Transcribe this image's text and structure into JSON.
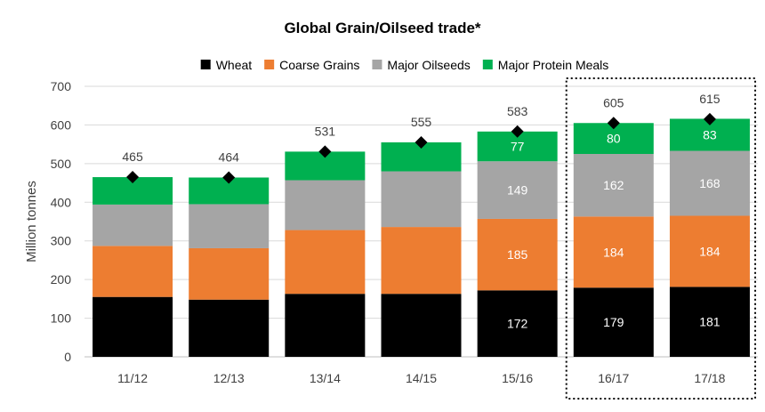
{
  "chart_data": {
    "type": "bar",
    "stacked": true,
    "title": "Global Grain/Oilseed trade*",
    "ylabel": "Million tonnes",
    "xlabel": "",
    "ylim": [
      0,
      700
    ],
    "yticks": [
      0,
      100,
      200,
      300,
      400,
      500,
      600,
      700
    ],
    "grid": true,
    "legend_position": "top",
    "categories": [
      "11/12",
      "12/13",
      "13/14",
      "14/15",
      "15/16",
      "16/17",
      "17/18"
    ],
    "series": [
      {
        "name": "Wheat",
        "color": "#000000",
        "values": [
          155,
          148,
          163,
          163,
          172,
          179,
          181
        ],
        "labels": [
          "",
          "",
          "",
          "",
          "172",
          "179",
          "181"
        ]
      },
      {
        "name": "Coarse Grains",
        "color": "#ed7d31",
        "values": [
          132,
          133,
          165,
          173,
          185,
          184,
          184
        ],
        "labels": [
          "",
          "",
          "",
          "",
          "185",
          "184",
          "184"
        ]
      },
      {
        "name": "Major Oilseeds",
        "color": "#a5a5a5",
        "values": [
          107,
          114,
          129,
          144,
          149,
          162,
          168
        ],
        "labels": [
          "",
          "",
          "",
          "",
          "149",
          "162",
          "168"
        ]
      },
      {
        "name": "Major Protein Meals",
        "color": "#00b050",
        "values": [
          71,
          69,
          74,
          75,
          77,
          80,
          83
        ],
        "labels": [
          "",
          "",
          "",
          "",
          "77",
          "80",
          "83"
        ]
      }
    ],
    "totals": [
      465,
      464,
      531,
      555,
      583,
      605,
      615
    ],
    "total_marker": "diamond",
    "highlighted_categories": [
      "16/17",
      "17/18"
    ],
    "highlight_style": "dotted-box"
  }
}
